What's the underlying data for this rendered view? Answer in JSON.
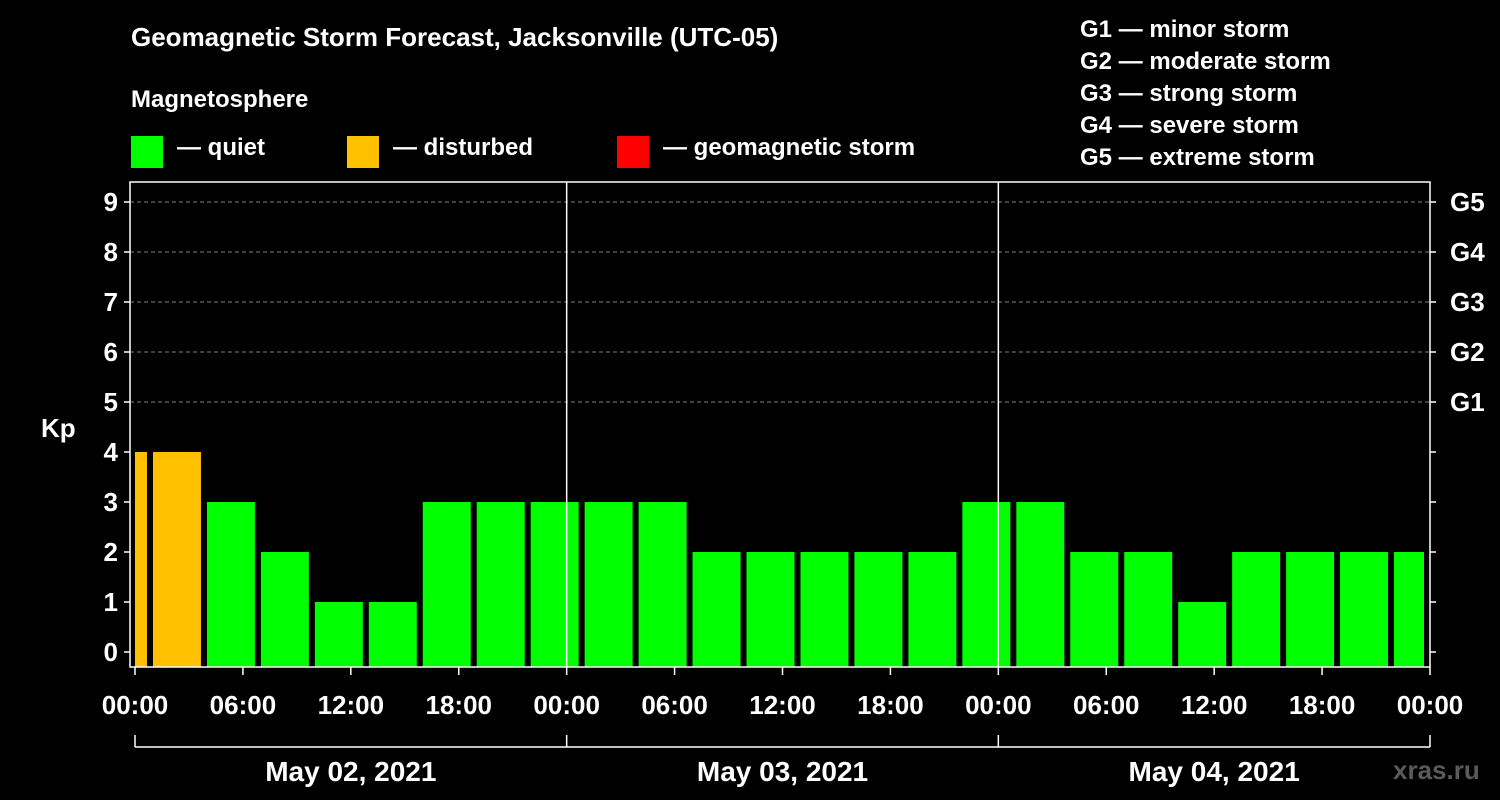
{
  "chart_data": {
    "type": "bar",
    "title": "Geomagnetic Storm Forecast, Jacksonville (UTC-05)",
    "subtitle": "Magnetosphere",
    "ylabel": "Kp",
    "ylim": [
      0,
      9
    ],
    "y_ticks": [
      "0",
      "1",
      "2",
      "3",
      "4",
      "5",
      "6",
      "7",
      "8",
      "9"
    ],
    "g_ticks": [
      {
        "kp": 5,
        "label": "G1"
      },
      {
        "kp": 6,
        "label": "G2"
      },
      {
        "kp": 7,
        "label": "G3"
      },
      {
        "kp": 8,
        "label": "G4"
      },
      {
        "kp": 9,
        "label": "G5"
      }
    ],
    "x_start_hour": 0,
    "x_end_hour": 72,
    "x_tick_labels": [
      "00:00",
      "06:00",
      "12:00",
      "18:00",
      "00:00",
      "06:00",
      "12:00",
      "18:00",
      "00:00",
      "06:00",
      "12:00",
      "18:00",
      "00:00"
    ],
    "dates": [
      "May 02, 2021",
      "May 03, 2021",
      "May 04, 2021"
    ],
    "bars": [
      {
        "start": 0,
        "end": 1,
        "kp": 4,
        "status": "disturbed"
      },
      {
        "start": 1,
        "end": 4,
        "kp": 4,
        "status": "disturbed"
      },
      {
        "start": 4,
        "end": 7,
        "kp": 3,
        "status": "quiet"
      },
      {
        "start": 7,
        "end": 10,
        "kp": 2,
        "status": "quiet"
      },
      {
        "start": 10,
        "end": 13,
        "kp": 1,
        "status": "quiet"
      },
      {
        "start": 13,
        "end": 16,
        "kp": 1,
        "status": "quiet"
      },
      {
        "start": 16,
        "end": 19,
        "kp": 3,
        "status": "quiet"
      },
      {
        "start": 19,
        "end": 22,
        "kp": 3,
        "status": "quiet"
      },
      {
        "start": 22,
        "end": 25,
        "kp": 3,
        "status": "quiet"
      },
      {
        "start": 25,
        "end": 28,
        "kp": 3,
        "status": "quiet"
      },
      {
        "start": 28,
        "end": 31,
        "kp": 3,
        "status": "quiet"
      },
      {
        "start": 31,
        "end": 34,
        "kp": 2,
        "status": "quiet"
      },
      {
        "start": 34,
        "end": 37,
        "kp": 2,
        "status": "quiet"
      },
      {
        "start": 37,
        "end": 40,
        "kp": 2,
        "status": "quiet"
      },
      {
        "start": 40,
        "end": 43,
        "kp": 2,
        "status": "quiet"
      },
      {
        "start": 43,
        "end": 46,
        "kp": 2,
        "status": "quiet"
      },
      {
        "start": 46,
        "end": 49,
        "kp": 3,
        "status": "quiet"
      },
      {
        "start": 49,
        "end": 52,
        "kp": 3,
        "status": "quiet"
      },
      {
        "start": 52,
        "end": 55,
        "kp": 2,
        "status": "quiet"
      },
      {
        "start": 55,
        "end": 58,
        "kp": 2,
        "status": "quiet"
      },
      {
        "start": 58,
        "end": 61,
        "kp": 1,
        "status": "quiet"
      },
      {
        "start": 61,
        "end": 64,
        "kp": 2,
        "status": "quiet"
      },
      {
        "start": 64,
        "end": 67,
        "kp": 2,
        "status": "quiet"
      },
      {
        "start": 67,
        "end": 70,
        "kp": 2,
        "status": "quiet"
      },
      {
        "start": 70,
        "end": 72,
        "kp": 2,
        "status": "quiet"
      }
    ],
    "legend": [
      {
        "key": "quiet",
        "label": "— quiet",
        "color": "#00ff00"
      },
      {
        "key": "disturbed",
        "label": "— disturbed",
        "color": "#ffc000"
      },
      {
        "key": "storm",
        "label": "— geomagnetic storm",
        "color": "#ff0000"
      }
    ],
    "storm_scale": [
      "G1 — minor storm",
      "G2 — moderate storm",
      "G3 — strong storm",
      "G4 — severe storm",
      "G5 — extreme storm"
    ],
    "source": "xras.ru"
  }
}
